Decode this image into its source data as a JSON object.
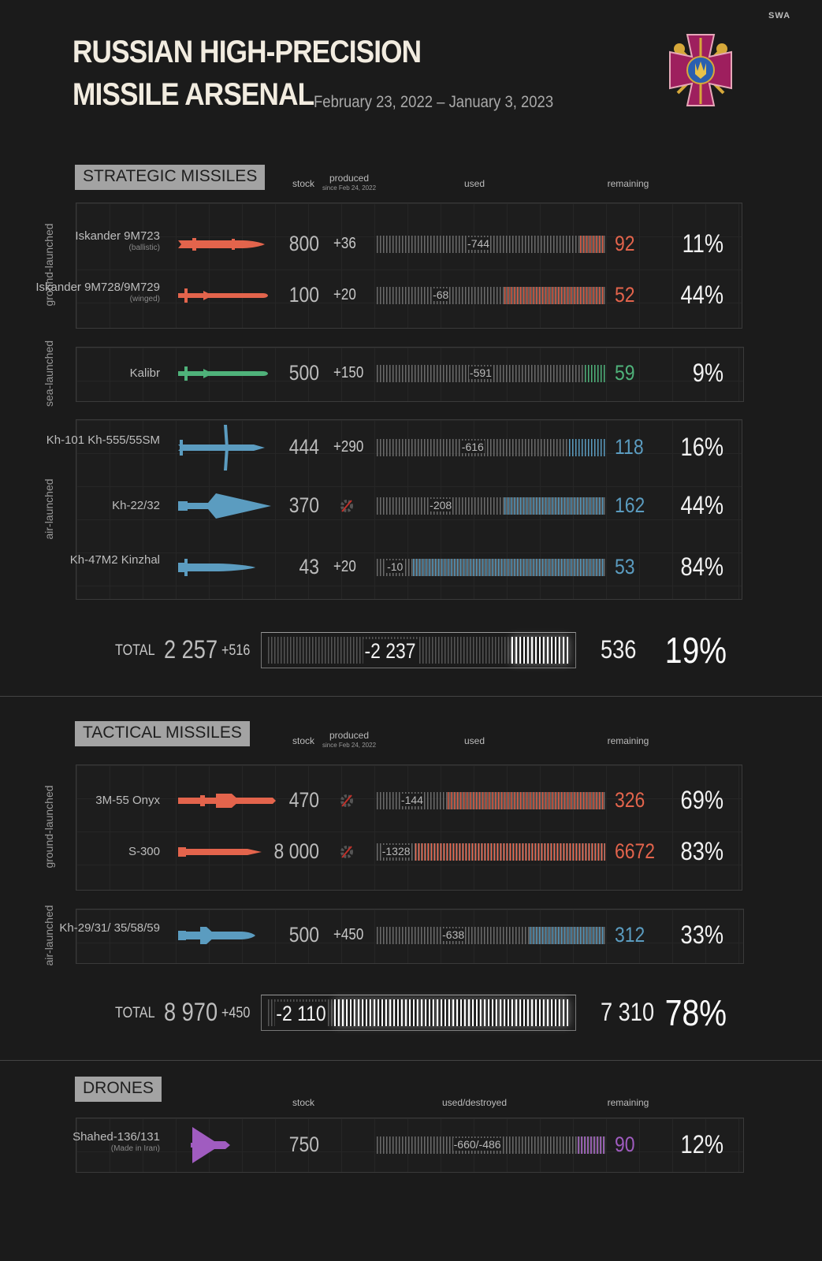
{
  "header": {
    "title_line1": "RUSSIAN HIGH-PRECISION",
    "title_line2": "MISSILE ARSENAL",
    "date_range": "February 23, 2022 – January 3, 2023",
    "watermark": "SWA",
    "emblem": "ukrainian-armed-forces-emblem-icon"
  },
  "columns": {
    "stock": "stock",
    "produced": "produced",
    "produced_note": "since Feb 24, 2022",
    "used": "used",
    "used_destroyed": "used/destroyed",
    "remaining": "remaining"
  },
  "colors": {
    "ground": "#e3644c",
    "sea": "#4fb27a",
    "air": "#5b9cc0",
    "drone": "#a05cc0",
    "total": "#ffffff",
    "background": "#1b1b1b"
  },
  "no_production_icon": "gear-crossed-icon",
  "chart_data": {
    "type": "table",
    "sections": [
      {
        "title": "STRATEGIC MISSILES",
        "groups": [
          {
            "label": "ground-launched",
            "color": "#e3644c",
            "rows": [
              {
                "name": "Iskander 9M723",
                "note": "(ballistic)",
                "icon": "ballistic-missile-icon",
                "stock": "800",
                "produced": "+36",
                "used": "-744",
                "remaining": "92",
                "percent": "11%",
                "remaining_fraction": 0.11
              },
              {
                "name": "Iskander 9M728/9M729",
                "note": "(winged)",
                "icon": "cruise-missile-icon",
                "stock": "100",
                "produced": "+20",
                "used": "-68",
                "remaining": "52",
                "percent": "44%",
                "remaining_fraction": 0.44
              }
            ]
          },
          {
            "label": "sea-launched",
            "color": "#4fb27a",
            "rows": [
              {
                "name": "Kalibr",
                "note": "",
                "icon": "cruise-missile-icon",
                "stock": "500",
                "produced": "+150",
                "used": "-591",
                "remaining": "59",
                "percent": "9%",
                "remaining_fraction": 0.09
              }
            ]
          },
          {
            "label": "air-launched",
            "color": "#5b9cc0",
            "rows": [
              {
                "name": "Kh-101 Kh-555/55SM",
                "note": "",
                "icon": "winged-cruise-missile-icon",
                "stock": "444",
                "produced": "+290",
                "used": "-616",
                "remaining": "118",
                "percent": "16%",
                "remaining_fraction": 0.16
              },
              {
                "name": "Kh-22/32",
                "note": "",
                "icon": "delta-wing-missile-icon",
                "stock": "370",
                "produced": null,
                "used": "-208",
                "remaining": "162",
                "percent": "44%",
                "remaining_fraction": 0.44
              },
              {
                "name": "Kh-47M2 Kinzhal",
                "note": "",
                "icon": "hypersonic-missile-icon",
                "stock": "43",
                "produced": "+20",
                "used": "-10",
                "remaining": "53",
                "percent": "84%",
                "remaining_fraction": 0.84
              }
            ]
          }
        ],
        "total": {
          "label": "TOTAL",
          "stock": "2 257",
          "produced": "+516",
          "used": "-2 237",
          "remaining": "536",
          "percent": "19%",
          "remaining_fraction": 0.19
        }
      },
      {
        "title": "TACTICAL MISSILES",
        "groups": [
          {
            "label": "ground-launched",
            "color": "#e3644c",
            "rows": [
              {
                "name": "3M-55 Onyx",
                "note": "",
                "icon": "anti-ship-missile-icon",
                "stock": "470",
                "produced": null,
                "used": "-144",
                "remaining": "326",
                "percent": "69%",
                "remaining_fraction": 0.69
              },
              {
                "name": "S-300",
                "note": "",
                "icon": "sam-missile-icon",
                "stock": "8 000",
                "produced": null,
                "used": "-1328",
                "remaining": "6672",
                "percent": "83%",
                "remaining_fraction": 0.83
              }
            ]
          },
          {
            "label": "air-launched",
            "color": "#5b9cc0",
            "rows": [
              {
                "name": "Kh-29/31/ 35/58/59",
                "note": "",
                "icon": "air-to-surface-missile-icon",
                "stock": "500",
                "produced": "+450",
                "used": "-638",
                "remaining": "312",
                "percent": "33%",
                "remaining_fraction": 0.33
              }
            ]
          }
        ],
        "total": {
          "label": "TOTAL",
          "stock": "8 970",
          "produced": "+450",
          "used": "-2 110",
          "remaining": "7 310",
          "percent": "78%",
          "remaining_fraction": 0.78
        }
      },
      {
        "title": "DRONES",
        "groups": [
          {
            "label": "",
            "color": "#a05cc0",
            "rows": [
              {
                "name": "Shahed-136/131",
                "note": "(Made in Iran)",
                "icon": "delta-drone-icon",
                "stock": "750",
                "produced": "",
                "used": "-660/-486",
                "remaining": "90",
                "percent": "12%",
                "remaining_fraction": 0.12
              }
            ]
          }
        ]
      }
    ]
  }
}
